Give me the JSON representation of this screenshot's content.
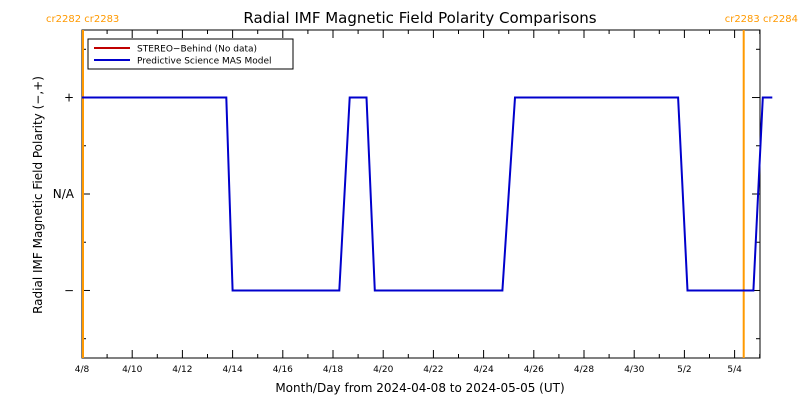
{
  "chart_data": {
    "type": "line",
    "title": "Radial IMF Magnetic Field Polarity Comparisons",
    "xlabel": "Month/Day from 2024-04-08 to 2024-05-05 (UT)",
    "ylabel": "Radial IMF Magnetic Field Polarity (−,+)",
    "x_start": "2024-04-08",
    "x_end": "2024-05-05",
    "xlim": [
      "2024-04-08",
      "2024-05-05"
    ],
    "ylim": [
      -1.7,
      1.7
    ],
    "xticks": [
      {
        "x": "2024-04-08",
        "label": "4/8"
      },
      {
        "x": "2024-04-10",
        "label": "4/10"
      },
      {
        "x": "2024-04-12",
        "label": "4/12"
      },
      {
        "x": "2024-04-14",
        "label": "4/14"
      },
      {
        "x": "2024-04-16",
        "label": "4/16"
      },
      {
        "x": "2024-04-18",
        "label": "4/18"
      },
      {
        "x": "2024-04-20",
        "label": "4/20"
      },
      {
        "x": "2024-04-22",
        "label": "4/22"
      },
      {
        "x": "2024-04-24",
        "label": "4/24"
      },
      {
        "x": "2024-04-26",
        "label": "4/26"
      },
      {
        "x": "2024-04-28",
        "label": "4/28"
      },
      {
        "x": "2024-04-30",
        "label": "4/30"
      },
      {
        "x": "2024-05-02",
        "label": "5/2"
      },
      {
        "x": "2024-05-04",
        "label": "5/4"
      }
    ],
    "yticks": [
      {
        "y": 1,
        "label": "+"
      },
      {
        "y": 0,
        "label": "N/A"
      },
      {
        "y": -1,
        "label": "−"
      }
    ],
    "carrington_markers": [
      {
        "x": "2024-04-08",
        "label": "cr2282 cr2283",
        "anchor": "left"
      },
      {
        "x": "2024-05-05",
        "label": "cr2283 cr2284",
        "anchor": "right"
      }
    ],
    "legend": {
      "placement": "top-left",
      "entries": [
        {
          "name": "STEREO−Behind (No data)",
          "color": "#c00000"
        },
        {
          "name": "Predictive Science MAS Model",
          "color": "#0000cc"
        }
      ]
    },
    "series": [
      {
        "name": "STEREO−Behind (No data)",
        "color": "#c00000",
        "points": []
      },
      {
        "name": "Predictive Science MAS Model",
        "color": "#0000cc",
        "points": [
          {
            "x": "2024-04-08T00:00",
            "y": 1
          },
          {
            "x": "2024-04-13T18:00",
            "y": 1
          },
          {
            "x": "2024-04-14T00:00",
            "y": -1
          },
          {
            "x": "2024-04-18T06:00",
            "y": -1
          },
          {
            "x": "2024-04-18T16:00",
            "y": 1
          },
          {
            "x": "2024-04-19T08:00",
            "y": 1
          },
          {
            "x": "2024-04-19T16:00",
            "y": -1
          },
          {
            "x": "2024-04-24T18:00",
            "y": -1
          },
          {
            "x": "2024-04-25T06:00",
            "y": 1
          },
          {
            "x": "2024-05-01T18:00",
            "y": 1
          },
          {
            "x": "2024-05-02T03:00",
            "y": -1
          },
          {
            "x": "2024-05-04T18:00",
            "y": -1
          },
          {
            "x": "2024-05-05T03:00",
            "y": 1
          },
          {
            "x": "2024-05-05T12:00",
            "y": 1
          }
        ]
      }
    ],
    "colors": {
      "axis": "#000000",
      "title": "#000000",
      "carrington": "#ff9900",
      "background": "#ffffff"
    }
  }
}
